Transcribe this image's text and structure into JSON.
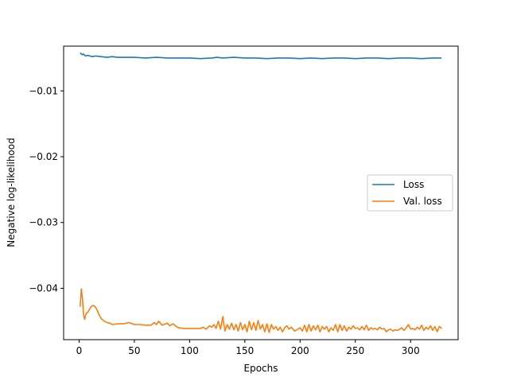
{
  "chart_data": {
    "type": "line",
    "title": "",
    "xlabel": "Epochs",
    "ylabel": "Negative log-likelihood",
    "xlim": [
      -14,
      343
    ],
    "ylim": [
      -0.0478,
      -0.0032
    ],
    "xticks": [
      0,
      50,
      100,
      150,
      200,
      250,
      300
    ],
    "yticks": [
      -0.01,
      -0.02,
      -0.03,
      -0.04
    ],
    "ytick_labels": [
      "−0.01",
      "−0.02",
      "−0.03",
      "−0.04"
    ],
    "grid": false,
    "legend_position": "center-right",
    "series": [
      {
        "name": "Loss",
        "color": "#1f77b4",
        "points": [
          [
            1,
            -0.0042
          ],
          [
            2,
            -0.0044
          ],
          [
            3,
            -0.0045
          ],
          [
            4,
            -0.0044
          ],
          [
            5,
            -0.0046
          ],
          [
            6,
            -0.0047
          ],
          [
            8,
            -0.0046
          ],
          [
            10,
            -0.0047
          ],
          [
            12,
            -0.0048
          ],
          [
            15,
            -0.0047
          ],
          [
            20,
            -0.0048
          ],
          [
            25,
            -0.0049
          ],
          [
            30,
            -0.0048
          ],
          [
            35,
            -0.0049
          ],
          [
            40,
            -0.0049
          ],
          [
            50,
            -0.0049
          ],
          [
            60,
            -0.005
          ],
          [
            70,
            -0.0049
          ],
          [
            80,
            -0.005
          ],
          [
            90,
            -0.005
          ],
          [
            100,
            -0.005
          ],
          [
            110,
            -0.0051
          ],
          [
            120,
            -0.005
          ],
          [
            125,
            -0.0049
          ],
          [
            130,
            -0.005
          ],
          [
            140,
            -0.0049
          ],
          [
            150,
            -0.005
          ],
          [
            160,
            -0.005
          ],
          [
            170,
            -0.0051
          ],
          [
            180,
            -0.005
          ],
          [
            190,
            -0.005
          ],
          [
            200,
            -0.0051
          ],
          [
            210,
            -0.005
          ],
          [
            220,
            -0.0051
          ],
          [
            230,
            -0.005
          ],
          [
            240,
            -0.005
          ],
          [
            250,
            -0.0051
          ],
          [
            260,
            -0.005
          ],
          [
            270,
            -0.005
          ],
          [
            280,
            -0.0051
          ],
          [
            290,
            -0.005
          ],
          [
            300,
            -0.005
          ],
          [
            310,
            -0.0051
          ],
          [
            320,
            -0.005
          ],
          [
            328,
            -0.005
          ]
        ]
      },
      {
        "name": "Val. loss",
        "color": "#ff7f0e",
        "points": [
          [
            1,
            -0.0428
          ],
          [
            2,
            -0.0401
          ],
          [
            3,
            -0.0415
          ],
          [
            4,
            -0.044
          ],
          [
            5,
            -0.0447
          ],
          [
            6,
            -0.044
          ],
          [
            7,
            -0.0437
          ],
          [
            8,
            -0.0436
          ],
          [
            10,
            -0.043
          ],
          [
            12,
            -0.0426
          ],
          [
            14,
            -0.0427
          ],
          [
            16,
            -0.0432
          ],
          [
            18,
            -0.044
          ],
          [
            20,
            -0.0446
          ],
          [
            22,
            -0.0449
          ],
          [
            25,
            -0.0452
          ],
          [
            28,
            -0.0453
          ],
          [
            30,
            -0.0455
          ],
          [
            35,
            -0.0454
          ],
          [
            40,
            -0.0454
          ],
          [
            45,
            -0.0452
          ],
          [
            50,
            -0.0455
          ],
          [
            55,
            -0.0455
          ],
          [
            60,
            -0.0456
          ],
          [
            65,
            -0.0456
          ],
          [
            68,
            -0.0452
          ],
          [
            70,
            -0.0455
          ],
          [
            72,
            -0.045
          ],
          [
            75,
            -0.0456
          ],
          [
            80,
            -0.0453
          ],
          [
            82,
            -0.0457
          ],
          [
            85,
            -0.0454
          ],
          [
            88,
            -0.0458
          ],
          [
            90,
            -0.046
          ],
          [
            95,
            -0.0461
          ],
          [
            100,
            -0.0461
          ],
          [
            105,
            -0.0461
          ],
          [
            110,
            -0.0461
          ],
          [
            112,
            -0.0459
          ],
          [
            115,
            -0.0462
          ],
          [
            118,
            -0.0457
          ],
          [
            120,
            -0.0459
          ],
          [
            122,
            -0.0455
          ],
          [
            124,
            -0.0461
          ],
          [
            126,
            -0.045
          ],
          [
            128,
            -0.0462
          ],
          [
            130,
            -0.0443
          ],
          [
            132,
            -0.0465
          ],
          [
            134,
            -0.0455
          ],
          [
            136,
            -0.0462
          ],
          [
            138,
            -0.0453
          ],
          [
            140,
            -0.0463
          ],
          [
            142,
            -0.0455
          ],
          [
            144,
            -0.0465
          ],
          [
            146,
            -0.0452
          ],
          [
            148,
            -0.0463
          ],
          [
            150,
            -0.0455
          ],
          [
            152,
            -0.0466
          ],
          [
            154,
            -0.045
          ],
          [
            156,
            -0.0463
          ],
          [
            158,
            -0.0452
          ],
          [
            160,
            -0.0464
          ],
          [
            162,
            -0.0449
          ],
          [
            164,
            -0.0462
          ],
          [
            166,
            -0.0455
          ],
          [
            168,
            -0.0466
          ],
          [
            170,
            -0.0454
          ],
          [
            172,
            -0.0467
          ],
          [
            174,
            -0.0455
          ],
          [
            176,
            -0.0462
          ],
          [
            178,
            -0.0458
          ],
          [
            180,
            -0.0464
          ],
          [
            182,
            -0.0459
          ],
          [
            184,
            -0.0466
          ],
          [
            186,
            -0.046
          ],
          [
            188,
            -0.0457
          ],
          [
            190,
            -0.0462
          ],
          [
            192,
            -0.0459
          ],
          [
            195,
            -0.0465
          ],
          [
            198,
            -0.0462
          ],
          [
            200,
            -0.046
          ],
          [
            202,
            -0.0465
          ],
          [
            204,
            -0.0456
          ],
          [
            206,
            -0.0466
          ],
          [
            208,
            -0.0455
          ],
          [
            210,
            -0.0465
          ],
          [
            212,
            -0.0457
          ],
          [
            214,
            -0.0463
          ],
          [
            216,
            -0.0456
          ],
          [
            218,
            -0.0466
          ],
          [
            220,
            -0.0458
          ],
          [
            222,
            -0.0462
          ],
          [
            224,
            -0.0458
          ],
          [
            226,
            -0.0466
          ],
          [
            228,
            -0.046
          ],
          [
            230,
            -0.0464
          ],
          [
            232,
            -0.0455
          ],
          [
            234,
            -0.0466
          ],
          [
            236,
            -0.0455
          ],
          [
            238,
            -0.0464
          ],
          [
            240,
            -0.0457
          ],
          [
            242,
            -0.0465
          ],
          [
            244,
            -0.0459
          ],
          [
            246,
            -0.0462
          ],
          [
            248,
            -0.0457
          ],
          [
            250,
            -0.0461
          ],
          [
            252,
            -0.046
          ],
          [
            254,
            -0.0463
          ],
          [
            256,
            -0.0458
          ],
          [
            258,
            -0.0463
          ],
          [
            260,
            -0.0456
          ],
          [
            262,
            -0.0464
          ],
          [
            264,
            -0.046
          ],
          [
            266,
            -0.0462
          ],
          [
            268,
            -0.0461
          ],
          [
            270,
            -0.0463
          ],
          [
            272,
            -0.0459
          ],
          [
            274,
            -0.0462
          ],
          [
            276,
            -0.0461
          ],
          [
            278,
            -0.0466
          ],
          [
            280,
            -0.0463
          ],
          [
            282,
            -0.0462
          ],
          [
            284,
            -0.0465
          ],
          [
            286,
            -0.0463
          ],
          [
            288,
            -0.0464
          ],
          [
            290,
            -0.0462
          ],
          [
            292,
            -0.046
          ],
          [
            294,
            -0.0464
          ],
          [
            296,
            -0.046
          ],
          [
            298,
            -0.0455
          ],
          [
            300,
            -0.0462
          ],
          [
            302,
            -0.0461
          ],
          [
            304,
            -0.0463
          ],
          [
            306,
            -0.0459
          ],
          [
            308,
            -0.0462
          ],
          [
            310,
            -0.0456
          ],
          [
            312,
            -0.0464
          ],
          [
            314,
            -0.0459
          ],
          [
            316,
            -0.0462
          ],
          [
            318,
            -0.0457
          ],
          [
            320,
            -0.0464
          ],
          [
            322,
            -0.0458
          ],
          [
            324,
            -0.0466
          ],
          [
            326,
            -0.0458
          ],
          [
            328,
            -0.0461
          ]
        ]
      }
    ]
  }
}
